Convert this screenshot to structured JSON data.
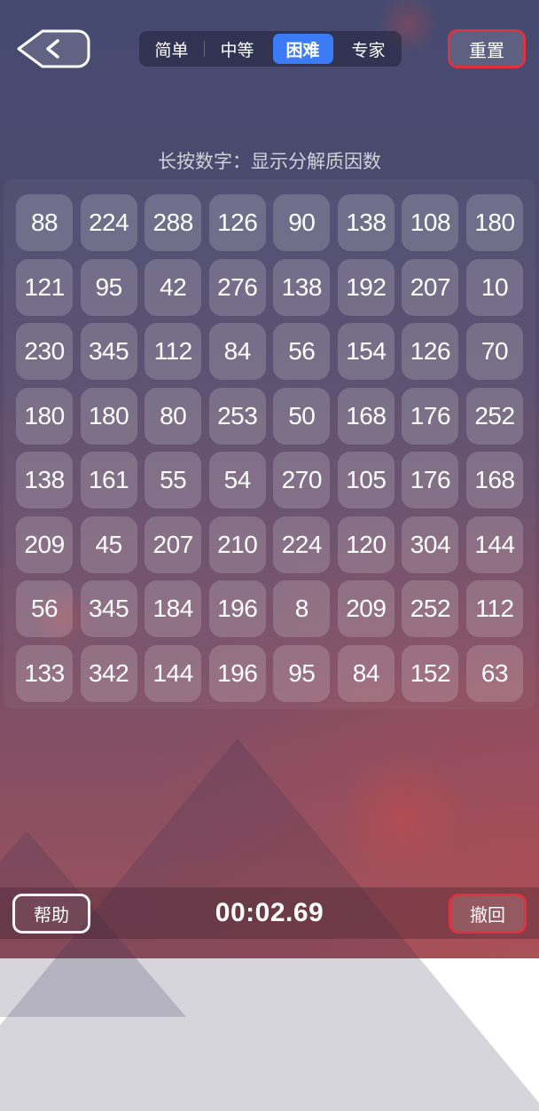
{
  "colors": {
    "accent_blue": "#3B7BF6",
    "danger_red": "#E0313F"
  },
  "top_bar": {
    "back_icon": "chevron-left",
    "difficulty_tabs": [
      {
        "label": "简单",
        "selected": false
      },
      {
        "label": "中等",
        "selected": false
      },
      {
        "label": "困难",
        "selected": true
      },
      {
        "label": "专家",
        "selected": false
      }
    ],
    "reset_label": "重置"
  },
  "hint": {
    "text": "长按数字：显示分解质因数"
  },
  "grid": {
    "rows": 8,
    "cols": 8,
    "cells": [
      [
        88,
        224,
        288,
        126,
        90,
        138,
        108,
        180
      ],
      [
        121,
        95,
        42,
        276,
        138,
        192,
        207,
        10
      ],
      [
        230,
        345,
        112,
        84,
        56,
        154,
        126,
        70
      ],
      [
        180,
        180,
        80,
        253,
        50,
        168,
        176,
        252
      ],
      [
        138,
        161,
        55,
        54,
        270,
        105,
        176,
        168
      ],
      [
        209,
        45,
        207,
        210,
        224,
        120,
        304,
        144
      ],
      [
        56,
        345,
        184,
        196,
        8,
        209,
        252,
        112
      ],
      [
        133,
        342,
        144,
        196,
        95,
        84,
        152,
        63
      ]
    ]
  },
  "footer": {
    "help_label": "帮助",
    "timer": "00:02.69",
    "undo_label": "撤回"
  }
}
